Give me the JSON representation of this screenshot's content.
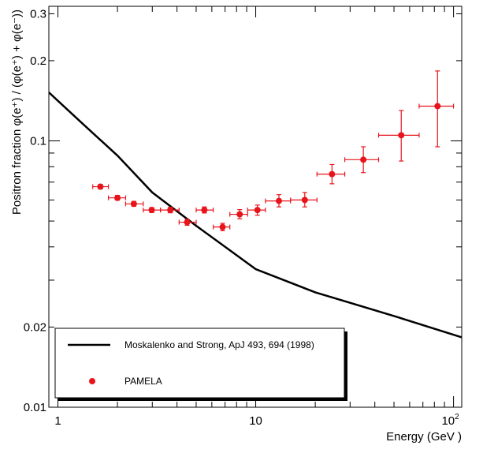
{
  "chart_data": {
    "type": "scatter",
    "xlabel": "Energy (GeV )",
    "ylabel": "Positron fraction φ(e⁺) / (φ(e⁺) + φ(e⁻))",
    "x_scale": "log",
    "y_scale": "log",
    "xlim": [
      0.9,
      110
    ],
    "ylim": [
      0.01,
      0.32
    ],
    "x_ticks": [
      {
        "value": 1,
        "label": "1"
      },
      {
        "value": 10,
        "label": "10"
      },
      {
        "value": 100,
        "label": "10²"
      }
    ],
    "y_ticks": [
      {
        "value": 0.01,
        "label": "0.01"
      },
      {
        "value": 0.02,
        "label": "0.02"
      },
      {
        "value": 0.1,
        "label": "0.1"
      },
      {
        "value": 0.2,
        "label": "0.2"
      },
      {
        "value": 0.3,
        "label": "0.3"
      }
    ],
    "grid": false,
    "legend_position": "bottom-left",
    "series": [
      {
        "name": "Moskalenko and Strong, ApJ 493, 694 (1998)",
        "kind": "line",
        "color": "#000000",
        "x": [
          0.9,
          1.3,
          2,
          3,
          5,
          7,
          10,
          20,
          50,
          110
        ],
        "y": [
          0.152,
          0.118,
          0.088,
          0.064,
          0.048,
          0.04,
          0.033,
          0.027,
          0.022,
          0.0183
        ]
      },
      {
        "name": "PAMELA",
        "kind": "scatter",
        "color": "#e8141c",
        "points": [
          {
            "x": 1.64,
            "y": 0.0673,
            "x_lo": 1.5,
            "x_hi": 1.8,
            "y_lo": 0.066,
            "y_hi": 0.0686
          },
          {
            "x": 2.0,
            "y": 0.0611,
            "x_lo": 1.8,
            "x_hi": 2.2,
            "y_lo": 0.0599,
            "y_hi": 0.0624
          },
          {
            "x": 2.42,
            "y": 0.058,
            "x_lo": 2.2,
            "x_hi": 2.7,
            "y_lo": 0.0568,
            "y_hi": 0.0593
          },
          {
            "x": 2.98,
            "y": 0.055,
            "x_lo": 2.7,
            "x_hi": 3.3,
            "y_lo": 0.0538,
            "y_hi": 0.0562
          },
          {
            "x": 3.7,
            "y": 0.055,
            "x_lo": 3.3,
            "x_hi": 4.1,
            "y_lo": 0.0537,
            "y_hi": 0.0563
          },
          {
            "x": 4.5,
            "y": 0.0495,
            "x_lo": 4.1,
            "x_hi": 5.0,
            "y_lo": 0.0482,
            "y_hi": 0.0508
          },
          {
            "x": 5.5,
            "y": 0.055,
            "x_lo": 5.0,
            "x_hi": 6.1,
            "y_lo": 0.0536,
            "y_hi": 0.0565
          },
          {
            "x": 6.8,
            "y": 0.0475,
            "x_lo": 6.1,
            "x_hi": 7.4,
            "y_lo": 0.046,
            "y_hi": 0.049
          },
          {
            "x": 8.3,
            "y": 0.053,
            "x_lo": 7.4,
            "x_hi": 9.1,
            "y_lo": 0.051,
            "y_hi": 0.0552
          },
          {
            "x": 10.2,
            "y": 0.055,
            "x_lo": 9.1,
            "x_hi": 11.2,
            "y_lo": 0.0526,
            "y_hi": 0.0574
          },
          {
            "x": 13.1,
            "y": 0.0595,
            "x_lo": 11.2,
            "x_hi": 15.0,
            "y_lo": 0.0565,
            "y_hi": 0.0628
          },
          {
            "x": 17.7,
            "y": 0.06,
            "x_lo": 15.0,
            "x_hi": 20.4,
            "y_lo": 0.0565,
            "y_hi": 0.064
          },
          {
            "x": 24.3,
            "y": 0.075,
            "x_lo": 20.4,
            "x_hi": 28.2,
            "y_lo": 0.069,
            "y_hi": 0.0815
          },
          {
            "x": 35.0,
            "y": 0.085,
            "x_lo": 28.2,
            "x_hi": 41.8,
            "y_lo": 0.076,
            "y_hi": 0.095
          },
          {
            "x": 54.4,
            "y": 0.105,
            "x_lo": 41.8,
            "x_hi": 67.0,
            "y_lo": 0.084,
            "y_hi": 0.13
          },
          {
            "x": 83.0,
            "y": 0.135,
            "x_lo": 67.0,
            "x_hi": 100.0,
            "y_lo": 0.095,
            "y_hi": 0.183
          }
        ]
      }
    ]
  }
}
